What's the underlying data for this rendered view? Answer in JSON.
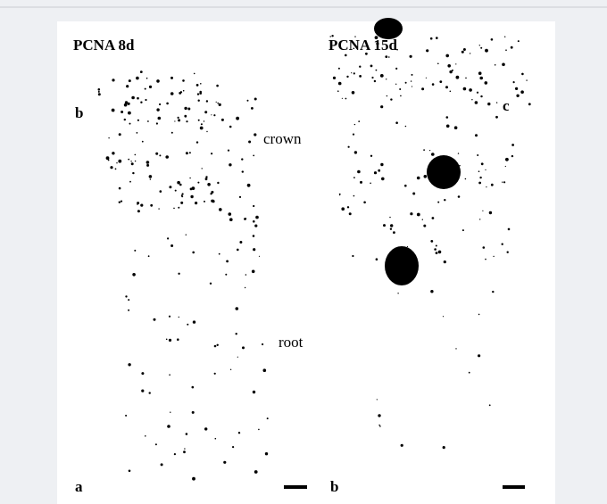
{
  "panels": [
    {
      "title": "PCNA 8d",
      "corner_top": "b",
      "corner_bottom": "a",
      "annotations": [
        "crown",
        "root"
      ]
    },
    {
      "title": "PCNA 15d",
      "corner_top": "c",
      "corner_bottom": "b"
    }
  ]
}
